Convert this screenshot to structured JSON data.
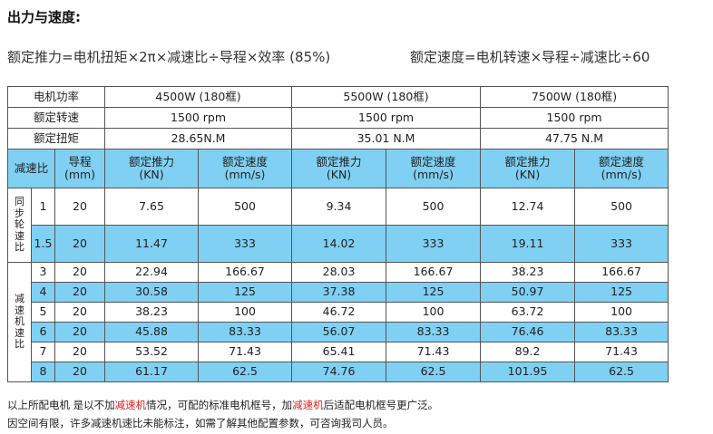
{
  "title": "出力与速度:",
  "formula_thrust": "额定推力=电机扭矩×2π×减速比÷导程×效率 (85%)",
  "formula_speed": "额定速度=电机转速×导程÷减速比÷60",
  "table": {
    "motor_power_label": "电机功率",
    "rated_rpm_label": "额定转速",
    "rated_torque_label": "额定扭矩",
    "motors": [
      {
        "power": "4500W (180框)",
        "rpm": "1500 rpm",
        "torque": "28.65N.M"
      },
      {
        "power": "5500W (180框)",
        "rpm": "1500 rpm",
        "torque": "35.01 N.M"
      },
      {
        "power": "7500W (180框)",
        "rpm": "1500 rpm",
        "torque": "47.75 N.M"
      }
    ],
    "header": {
      "ratio": "减速比",
      "lead": "导程\n(mm)",
      "thrust": "额定推力\n(KN)",
      "speed": "额定速度\n(mm/s)"
    },
    "group_sync": "同步轮速比",
    "group_reducer": "减速机速比",
    "rows": [
      {
        "ratio": "1",
        "lead": "20",
        "v": [
          "7.65",
          "500",
          "9.34",
          "500",
          "12.74",
          "500"
        ],
        "blue": false
      },
      {
        "ratio": "1.5",
        "lead": "20",
        "v": [
          "11.47",
          "333",
          "14.02",
          "333",
          "19.11",
          "333"
        ],
        "blue": true
      },
      {
        "ratio": "3",
        "lead": "20",
        "v": [
          "22.94",
          "166.67",
          "28.03",
          "166.67",
          "38.23",
          "166.67"
        ],
        "blue": false
      },
      {
        "ratio": "4",
        "lead": "20",
        "v": [
          "30.58",
          "125",
          "37.38",
          "125",
          "50.97",
          "125"
        ],
        "blue": true
      },
      {
        "ratio": "5",
        "lead": "20",
        "v": [
          "38.23",
          "100",
          "46.72",
          "100",
          "63.72",
          "100"
        ],
        "blue": false
      },
      {
        "ratio": "6",
        "lead": "20",
        "v": [
          "45.88",
          "83.33",
          "56.07",
          "83.33",
          "76.46",
          "83.33"
        ],
        "blue": true
      },
      {
        "ratio": "7",
        "lead": "20",
        "v": [
          "53.52",
          "71.43",
          "65.41",
          "71.43",
          "89.2",
          "71.43"
        ],
        "blue": false
      },
      {
        "ratio": "8",
        "lead": "20",
        "v": [
          "61.17",
          "62.5",
          "74.76",
          "62.5",
          "101.95",
          "62.5"
        ],
        "blue": true
      }
    ]
  },
  "notes": {
    "line1_a": "以上所配电机 是以不加",
    "line1_red1": "减速机",
    "line1_b": "情况，可配的标准电机框号，加",
    "line1_red2": "减速机",
    "line1_c": "后适配电机框号更广泛。",
    "line2": "因空间有限，许多减速机速比未能标注，如需了解其他配置参数，可咨询我司人员。"
  },
  "colors": {
    "header_bg": "#7fd0f3",
    "highlight_text": "#e02020"
  }
}
